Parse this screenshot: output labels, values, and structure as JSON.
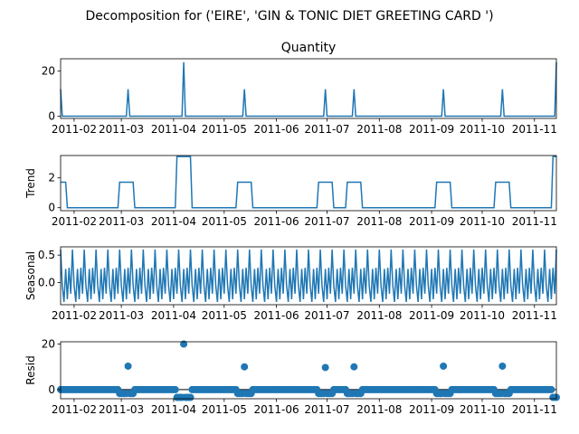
{
  "figure": {
    "suptitle": "Decomposition for ('EIRE', 'GIN & TONIC DIET GREETING CARD ')",
    "line_color": "#1f77b4"
  },
  "chart_data": [
    {
      "type": "line",
      "title": "Quantity",
      "ylabel": "",
      "ylim": [
        -1,
        25.5
      ],
      "yticks": [
        0,
        20
      ],
      "x_start": "2011-01-24",
      "x_end": "2011-11-14",
      "spikes": [
        {
          "date": "2011-01-24",
          "value": 12
        },
        {
          "date": "2011-03-05",
          "value": 12
        },
        {
          "date": "2011-04-07",
          "value": 24
        },
        {
          "date": "2011-05-13",
          "value": 12
        },
        {
          "date": "2011-06-30",
          "value": 12
        },
        {
          "date": "2011-07-17",
          "value": 12
        },
        {
          "date": "2011-09-08",
          "value": 12
        },
        {
          "date": "2011-10-13",
          "value": 12
        },
        {
          "date": "2011-11-14",
          "value": 24
        }
      ],
      "baseline": 0
    },
    {
      "type": "line",
      "title": "",
      "ylabel": "Trend",
      "ylim": [
        -0.2,
        3.5
      ],
      "yticks": [
        0,
        2
      ],
      "plateaus": [
        {
          "start": "2011-01-25",
          "end": "2011-01-27",
          "value": 1.71
        },
        {
          "start": "2011-02-28",
          "end": "2011-03-08",
          "value": 1.71
        },
        {
          "start": "2011-04-03",
          "end": "2011-04-11",
          "value": 3.43
        },
        {
          "start": "2011-05-09",
          "end": "2011-05-17",
          "value": 1.71
        },
        {
          "start": "2011-06-26",
          "end": "2011-07-04",
          "value": 1.71
        },
        {
          "start": "2011-07-13",
          "end": "2011-07-21",
          "value": 1.71
        },
        {
          "start": "2011-09-04",
          "end": "2011-09-12",
          "value": 1.71
        },
        {
          "start": "2011-10-09",
          "end": "2011-10-17",
          "value": 1.71
        },
        {
          "start": "2011-11-12",
          "end": "2011-11-14",
          "value": 3.43
        }
      ],
      "baseline": 0
    },
    {
      "type": "line",
      "title": "",
      "ylabel": "Seasonal",
      "ylim": [
        -0.4,
        0.65
      ],
      "yticks": [
        0.0,
        0.5
      ],
      "period_days": 7,
      "weekly_pattern": [
        0.6,
        -0.05,
        -0.35,
        0.25,
        -0.3,
        0.27,
        -0.2
      ]
    },
    {
      "type": "scatter",
      "title": "",
      "ylabel": "Resid",
      "ylim": [
        -4,
        21
      ],
      "yticks": [
        0,
        20
      ],
      "outliers": [
        {
          "date": "2011-03-05",
          "value": 10.3
        },
        {
          "date": "2011-04-07",
          "value": 20.0
        },
        {
          "date": "2011-05-13",
          "value": 10.0
        },
        {
          "date": "2011-06-30",
          "value": 9.7
        },
        {
          "date": "2011-07-17",
          "value": 10.0
        },
        {
          "date": "2011-09-08",
          "value": 10.3
        },
        {
          "date": "2011-10-13",
          "value": 10.3
        }
      ],
      "dip_windows": [
        {
          "start": "2011-02-28",
          "end": "2011-03-08",
          "value": -1.7
        },
        {
          "start": "2011-04-03",
          "end": "2011-04-11",
          "value": -3.4
        },
        {
          "start": "2011-05-09",
          "end": "2011-05-17",
          "value": -1.7
        },
        {
          "start": "2011-06-26",
          "end": "2011-07-04",
          "value": -1.7
        },
        {
          "start": "2011-07-13",
          "end": "2011-07-21",
          "value": -1.7
        },
        {
          "start": "2011-09-04",
          "end": "2011-09-12",
          "value": -1.7
        },
        {
          "start": "2011-10-09",
          "end": "2011-10-17",
          "value": -1.7
        },
        {
          "start": "2011-11-12",
          "end": "2011-11-14",
          "value": -3.4
        }
      ]
    }
  ],
  "x_ticks": [
    {
      "date": "2011-02-01",
      "label": "2011-02"
    },
    {
      "date": "2011-03-01",
      "label": "2011-03"
    },
    {
      "date": "2011-04-01",
      "label": "2011-04"
    },
    {
      "date": "2011-05-01",
      "label": "2011-05"
    },
    {
      "date": "2011-06-01",
      "label": "2011-06"
    },
    {
      "date": "2011-07-01",
      "label": "2011-07"
    },
    {
      "date": "2011-08-01",
      "label": "2011-08"
    },
    {
      "date": "2011-09-01",
      "label": "2011-09"
    },
    {
      "date": "2011-10-01",
      "label": "2011-10"
    },
    {
      "date": "2011-11-01",
      "label": "2011-11"
    }
  ]
}
